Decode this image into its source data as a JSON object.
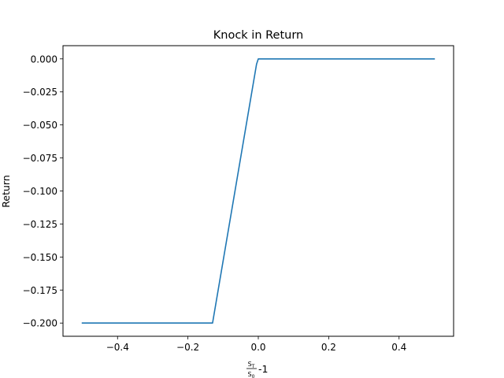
{
  "chart_data": {
    "type": "line",
    "title": "Knock in Return",
    "ylabel": "Return",
    "xlabel": {
      "numerator": "S",
      "numerator_sub": "T",
      "denominator": "S",
      "denominator_sub": "0",
      "suffix": "-1"
    },
    "xlim": [
      -0.555,
      0.555
    ],
    "ylim": [
      -0.21,
      0.01
    ],
    "xticks": [
      -0.4,
      -0.2,
      0.0,
      0.2,
      0.4
    ],
    "xtick_labels": [
      "−0.4",
      "−0.2",
      "0.0",
      "0.2",
      "0.4"
    ],
    "yticks": [
      0.0,
      -0.025,
      -0.05,
      -0.075,
      -0.1,
      -0.125,
      -0.15,
      -0.175,
      -0.2
    ],
    "ytick_labels": [
      "0.000",
      "−0.025",
      "−0.050",
      "−0.075",
      "−0.100",
      "−0.125",
      "−0.150",
      "−0.175",
      "−0.200"
    ],
    "grid": false,
    "series": [
      {
        "color": "#1f77b4",
        "x": [
          -0.5,
          -0.13,
          -0.005,
          0.0,
          0.005,
          0.5
        ],
        "y": [
          -0.2,
          -0.2,
          -0.004,
          0.0,
          0.0,
          0.0
        ]
      }
    ]
  }
}
